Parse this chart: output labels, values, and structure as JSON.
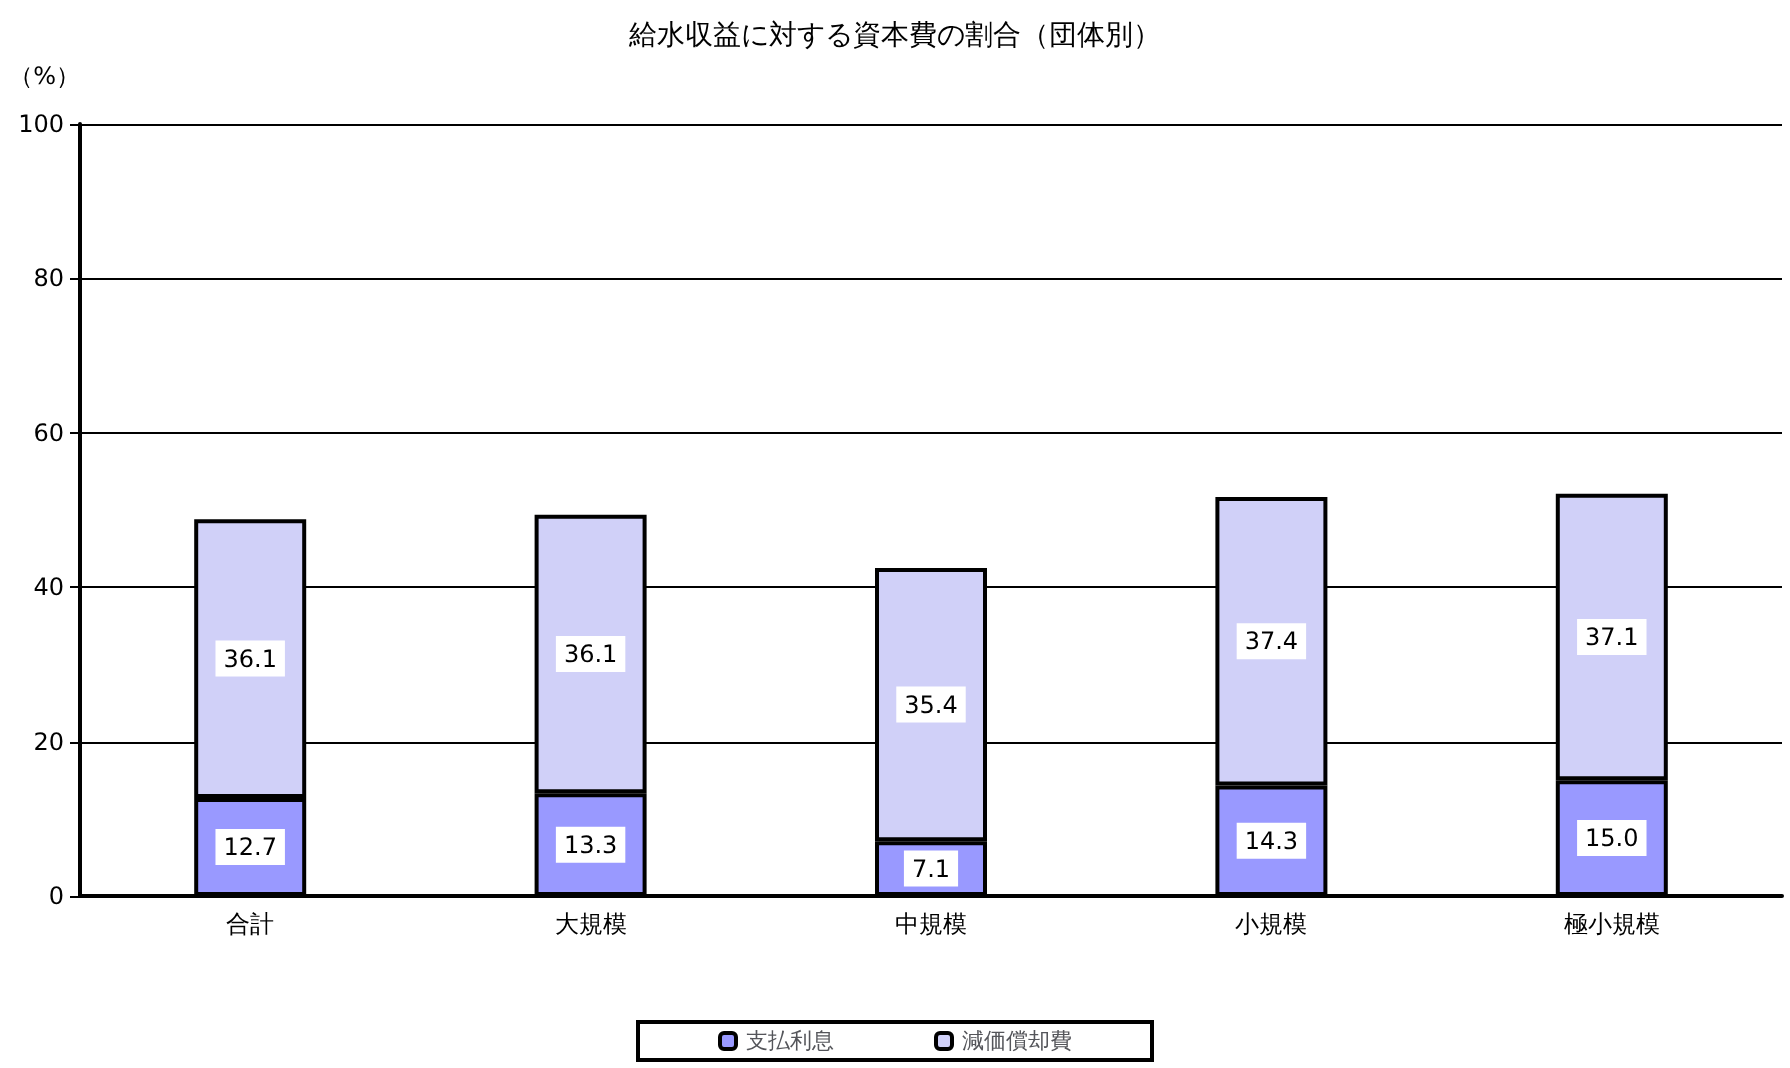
{
  "chart_data": {
    "type": "bar",
    "title": "給水収益に対する資本費の割合（団体別）",
    "ylabel": "（%）",
    "categories": [
      "合計",
      "大規模",
      "中規模",
      "小規模",
      "極小規模"
    ],
    "series": [
      {
        "name": "支払利息",
        "color": "#9999ff",
        "values": [
          12.7,
          13.3,
          7.1,
          14.3,
          15.0
        ],
        "value_labels": [
          "12.7",
          "13.3",
          "7.1",
          "14.3",
          "15.0"
        ]
      },
      {
        "name": "減価償却費",
        "color": "#d0d0f8",
        "values": [
          36.1,
          36.1,
          35.4,
          37.4,
          37.1
        ],
        "value_labels": [
          "36.1",
          "36.1",
          "35.4",
          "37.4",
          "37.1"
        ]
      }
    ],
    "stacked": true,
    "ylim": [
      0,
      100
    ],
    "yticks": [
      0,
      20,
      40,
      60,
      80,
      100
    ],
    "grid": "y",
    "legend": "bottom"
  }
}
